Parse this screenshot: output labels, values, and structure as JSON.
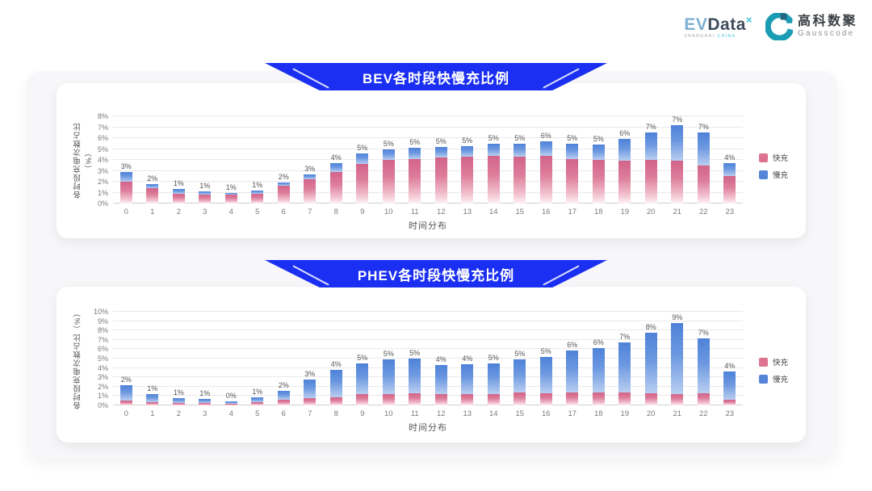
{
  "logo": {
    "evdata": {
      "ev": "EV",
      "data": "Data",
      "mark": "×",
      "sub_left": "SHANGHAI",
      "sub_right": "CHINA"
    },
    "gausscode": {
      "cn": "高科数聚",
      "en": "Gausscode"
    }
  },
  "colors": {
    "banner_blue": "#1b2ff2",
    "fast_pink": "#dd7390",
    "slow_blue": "#5585d8",
    "panel_bg": "#ffffff",
    "outer_bg": "#f7f7f9",
    "gausscode_teal": "#1a9db4",
    "gausscode_dark": "#23647e"
  },
  "legend_labels": {
    "fast": "快充",
    "slow": "慢充"
  },
  "chart_data": [
    {
      "type": "bar",
      "stacked": true,
      "title": "BEV各时段快慢充比例",
      "xlabel": "时间分布",
      "ylabel": "各时段充电次数占比（%）",
      "ylim": [
        0,
        8
      ],
      "grid": true,
      "legend_position": "right",
      "y_ticks": [
        "0%",
        "1%",
        "2%",
        "3%",
        "4%",
        "5%",
        "6%",
        "7%",
        "8%"
      ],
      "categories": [
        "0",
        "1",
        "2",
        "3",
        "4",
        "5",
        "6",
        "7",
        "8",
        "9",
        "10",
        "11",
        "12",
        "13",
        "14",
        "15",
        "16",
        "17",
        "18",
        "19",
        "20",
        "21",
        "22",
        "23"
      ],
      "series": [
        {
          "name": "快充",
          "color": "#dd7390",
          "values": [
            2.0,
            1.4,
            0.9,
            0.85,
            0.8,
            0.9,
            1.6,
            2.2,
            2.9,
            3.6,
            4.0,
            4.1,
            4.2,
            4.3,
            4.4,
            4.3,
            4.4,
            4.1,
            4.0,
            3.9,
            4.0,
            3.9,
            3.5,
            2.5
          ]
        },
        {
          "name": "慢充",
          "color": "#5585d8",
          "values": [
            0.9,
            0.4,
            0.4,
            0.25,
            0.15,
            0.25,
            0.3,
            0.5,
            0.8,
            1.0,
            1.0,
            1.0,
            1.0,
            1.0,
            1.1,
            1.2,
            1.3,
            1.4,
            1.4,
            2.0,
            2.5,
            3.3,
            3.0,
            1.2
          ]
        }
      ],
      "total_labels": [
        "3%",
        "2%",
        "1%",
        "1%",
        "1%",
        "1%",
        "2%",
        "3%",
        "4%",
        "5%",
        "5%",
        "5%",
        "5%",
        "5%",
        "5%",
        "5%",
        "6%",
        "5%",
        "5%",
        "6%",
        "7%",
        "7%",
        "7%",
        "4%"
      ]
    },
    {
      "type": "bar",
      "stacked": true,
      "title": "PHEV各时段快慢充比例",
      "xlabel": "时间分布",
      "ylabel": "各时段充电次数占比（%）",
      "ylim": [
        0,
        10
      ],
      "grid": true,
      "legend_position": "right",
      "y_ticks": [
        "0%",
        "1%",
        "2%",
        "3%",
        "4%",
        "5%",
        "6%",
        "7%",
        "8%",
        "9%",
        "10%"
      ],
      "categories": [
        "0",
        "1",
        "2",
        "3",
        "4",
        "5",
        "6",
        "7",
        "8",
        "9",
        "10",
        "11",
        "12",
        "13",
        "14",
        "15",
        "16",
        "17",
        "18",
        "19",
        "20",
        "21",
        "22",
        "23"
      ],
      "series": [
        {
          "name": "快充",
          "color": "#dd7390",
          "values": [
            0.5,
            0.35,
            0.3,
            0.3,
            0.2,
            0.35,
            0.6,
            0.8,
            0.9,
            1.2,
            1.2,
            1.3,
            1.2,
            1.2,
            1.2,
            1.4,
            1.3,
            1.4,
            1.4,
            1.4,
            1.3,
            1.2,
            1.3,
            0.6
          ]
        },
        {
          "name": "慢充",
          "color": "#5585d8",
          "values": [
            1.7,
            0.85,
            0.5,
            0.35,
            0.25,
            0.5,
            0.95,
            1.95,
            2.9,
            3.3,
            3.7,
            3.7,
            3.1,
            3.2,
            3.3,
            3.5,
            3.9,
            4.5,
            4.7,
            5.3,
            6.5,
            7.6,
            5.9,
            3.0
          ]
        }
      ],
      "total_labels": [
        "2%",
        "1%",
        "1%",
        "1%",
        "0%",
        "1%",
        "2%",
        "3%",
        "4%",
        "5%",
        "5%",
        "5%",
        "4%",
        "4%",
        "5%",
        "5%",
        "5%",
        "6%",
        "6%",
        "7%",
        "8%",
        "9%",
        "7%",
        "4%"
      ]
    }
  ]
}
